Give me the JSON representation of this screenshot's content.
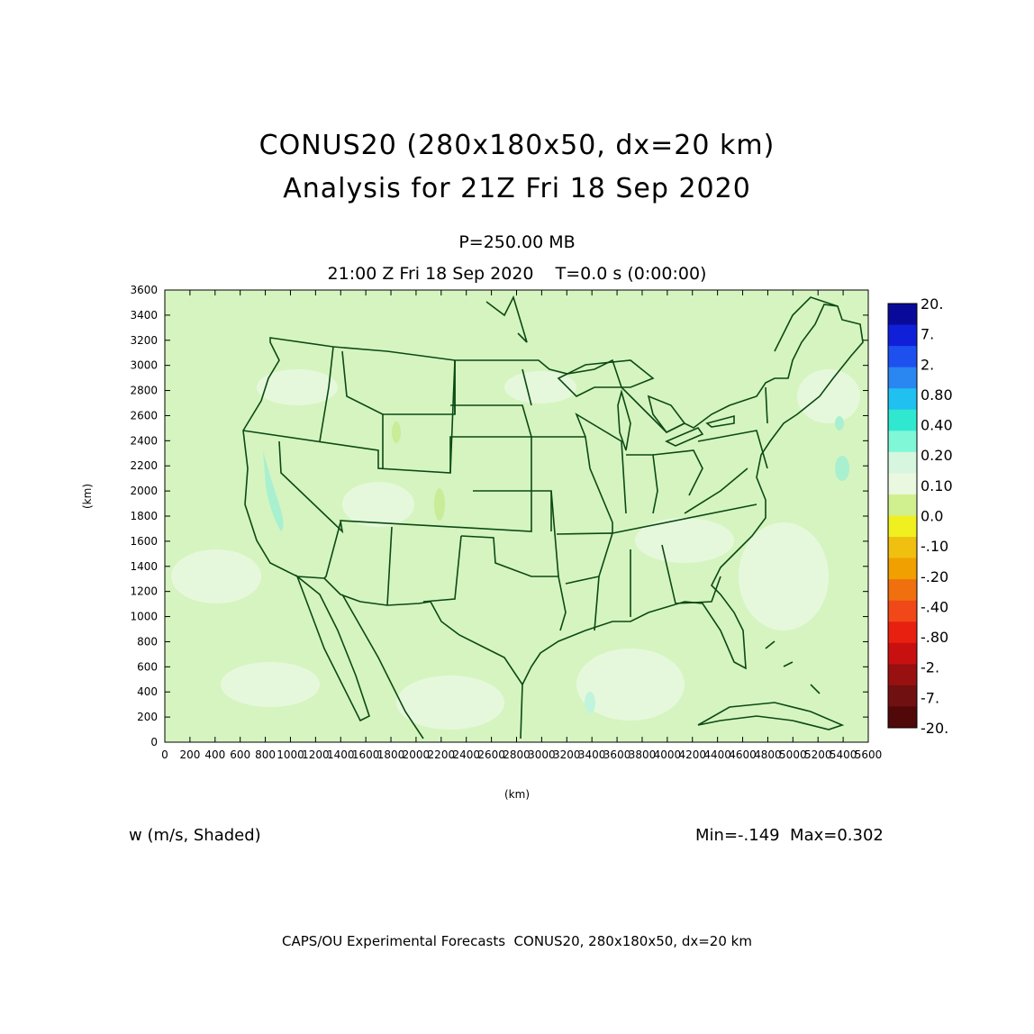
{
  "header": {
    "title_line1": "CONUS20 (280x180x50, dx=20 km)",
    "title_line2": "Analysis for 21Z Fri 18 Sep 2020",
    "level": "P=250.00 MB",
    "time": "21:00 Z Fri 18 Sep 2020    T=0.0 s (0:00:00)"
  },
  "axes": {
    "x_label": "(km)",
    "y_label": "(km)",
    "x_ticks": [
      "0",
      "200",
      "400",
      "600",
      "800",
      "1000",
      "1200",
      "1400",
      "1600",
      "1800",
      "2000",
      "2200",
      "2400",
      "2600",
      "2800",
      "3000",
      "3200",
      "3400",
      "3600",
      "3800",
      "4000",
      "4200",
      "4400",
      "4600",
      "4800",
      "5000",
      "5200",
      "5400",
      "5600"
    ],
    "y_ticks": [
      "0",
      "200",
      "400",
      "600",
      "800",
      "1000",
      "1200",
      "1400",
      "1600",
      "1800",
      "2000",
      "2200",
      "2400",
      "2600",
      "2800",
      "3000",
      "3200",
      "3400",
      "3600"
    ],
    "x_range": [
      0,
      5600
    ],
    "y_range": [
      0,
      3600
    ]
  },
  "colorbar": {
    "labels": [
      "20.",
      "7.",
      "2.",
      "0.80",
      "0.40",
      "0.20",
      "0.10",
      "0.0",
      "-.10",
      "-.20",
      "-.40",
      "-.80",
      "-2.",
      "-7.",
      "-20."
    ],
    "colors": [
      "#0a0a9a",
      "#1020d8",
      "#1e50f0",
      "#2a86f0",
      "#20c0f0",
      "#30e8d0",
      "#80f8d8",
      "#d6f6e0",
      "#eaf8e0",
      "#d0f090",
      "#f0f020",
      "#f0c010",
      "#f0a000",
      "#f07010",
      "#f04818",
      "#e82010",
      "#c81010",
      "#981010",
      "#701010",
      "#500808"
    ]
  },
  "field": {
    "variable": "w (m/s, Shaded)",
    "minmax": "Min=-.149  Max=0.302",
    "base_color": "#d6f4c0",
    "light_color": "#e6f8dc",
    "pos_color": "#a8f0d0",
    "coast_color": "#0a4a14"
  },
  "footer": "CAPS/OU Experimental Forecasts  CONUS20, 280x180x50, dx=20 km"
}
